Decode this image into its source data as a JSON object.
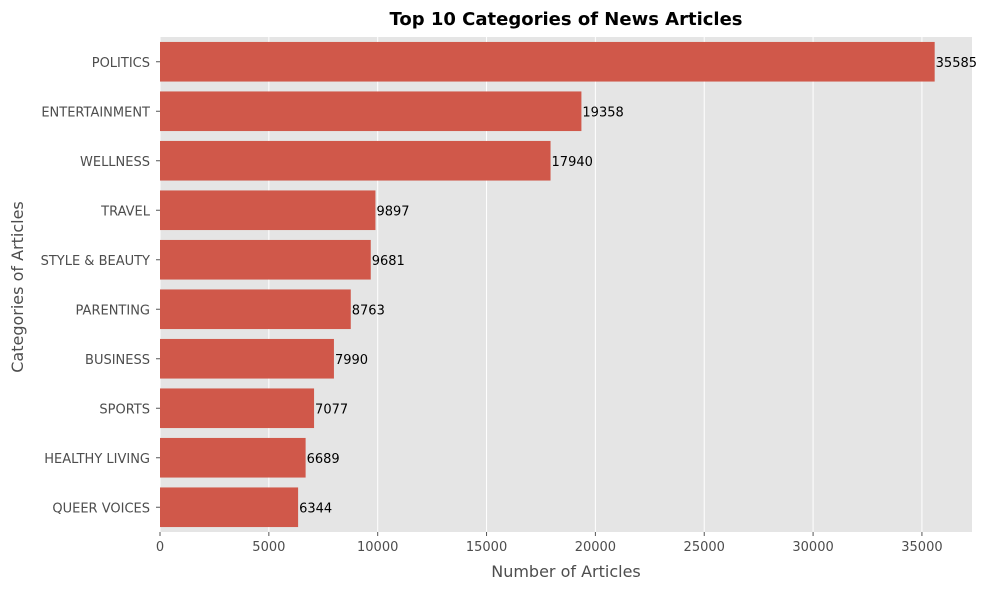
{
  "chart_data": {
    "type": "bar",
    "orientation": "horizontal",
    "title": "Top 10 Categories of News Articles",
    "xlabel": "Number of Articles",
    "ylabel": "Categories of Articles",
    "categories": [
      "POLITICS",
      "ENTERTAINMENT",
      "WELLNESS",
      "TRAVEL",
      "STYLE & BEAUTY",
      "PARENTING",
      "BUSINESS",
      "SPORTS",
      "HEALTHY LIVING",
      "QUEER VOICES"
    ],
    "values": [
      35585,
      19358,
      17940,
      9897,
      9681,
      8763,
      7990,
      7077,
      6689,
      6344
    ],
    "xlim": [
      0,
      37300
    ],
    "xticks": [
      0,
      5000,
      10000,
      15000,
      20000,
      25000,
      30000,
      35000
    ],
    "grid": true,
    "bar_color": "#d0584a",
    "background_color": "#e5e5e5",
    "grid_color": "#ffffff"
  }
}
